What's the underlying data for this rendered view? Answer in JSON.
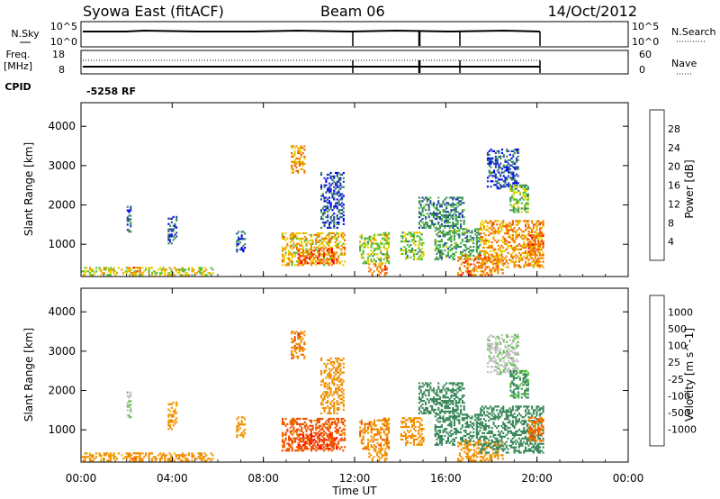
{
  "header": {
    "station": "Syowa East (fitACF)",
    "beam": "Beam 06",
    "date": "14/Oct/2012"
  },
  "nsky_panel": {
    "left_label": "N.Sky",
    "right_label": "N.Search",
    "left_ticks": [
      "10^5",
      "10^0"
    ],
    "right_ticks": [
      "10^5",
      "10^0"
    ]
  },
  "freq_panel": {
    "left_label_1": "Freq.",
    "left_label_2": "[MHz]",
    "left_ticks": [
      "18",
      "8"
    ],
    "right_label": "Nave",
    "right_ticks": [
      "60",
      "0"
    ]
  },
  "cpid_panel": {
    "label": "CPID",
    "value": "-5258 RF"
  },
  "chart_data": [
    {
      "type": "heatmap",
      "name": "power",
      "ylabel": "Slant Range [km]",
      "ylim": [
        180,
        4600
      ],
      "y_ticks": [
        "1000",
        "2000",
        "3000",
        "4000"
      ],
      "xlim_hours": [
        0,
        24
      ],
      "x_ticks": [
        "00:00",
        "04:00",
        "08:00",
        "12:00",
        "16:00",
        "20:00",
        "00:00"
      ],
      "colorbar": {
        "label": "Power [dB]",
        "ticks": [
          "4",
          "8",
          "12",
          "16",
          "20",
          "24",
          "28"
        ],
        "colors": [
          "#0000ff",
          "#2244aa",
          "#3d8a5a",
          "#50c03c",
          "#e8d000",
          "#f09000",
          "#f06000",
          "#ff0000"
        ]
      },
      "regions": [
        {
          "t": [
            0.0,
            5.8
          ],
          "r": [
            200,
            420
          ],
          "v": 18
        },
        {
          "t": [
            2.2,
            2.6
          ],
          "r": [
            250,
            400
          ],
          "v": 26
        },
        {
          "t": [
            2.0,
            2.2
          ],
          "r": [
            1300,
            2100
          ],
          "v": 6
        },
        {
          "t": [
            3.8,
            4.2
          ],
          "r": [
            1000,
            1700
          ],
          "v": 7
        },
        {
          "t": [
            6.8,
            7.2
          ],
          "r": [
            800,
            1300
          ],
          "v": 6
        },
        {
          "t": [
            8.8,
            11.6
          ],
          "r": [
            450,
            1300
          ],
          "v": 20
        },
        {
          "t": [
            9.5,
            11.2
          ],
          "r": [
            500,
            900
          ],
          "v": 26
        },
        {
          "t": [
            9.2,
            9.8
          ],
          "r": [
            2800,
            3500
          ],
          "v": 22
        },
        {
          "t": [
            10.5,
            11.5
          ],
          "r": [
            1400,
            2800
          ],
          "v": 6
        },
        {
          "t": [
            12.2,
            13.5
          ],
          "r": [
            500,
            1300
          ],
          "v": 16
        },
        {
          "t": [
            12.6,
            13.4
          ],
          "r": [
            200,
            500
          ],
          "v": 24
        },
        {
          "t": [
            14.0,
            15.0
          ],
          "r": [
            600,
            1300
          ],
          "v": 15
        },
        {
          "t": [
            14.8,
            16.8
          ],
          "r": [
            1400,
            2200
          ],
          "v": 10
        },
        {
          "t": [
            15.5,
            17.5
          ],
          "r": [
            600,
            1400
          ],
          "v": 12
        },
        {
          "t": [
            16.5,
            18.5
          ],
          "r": [
            200,
            700
          ],
          "v": 24
        },
        {
          "t": [
            17.5,
            20.3
          ],
          "r": [
            400,
            1600
          ],
          "v": 22
        },
        {
          "t": [
            17.8,
            19.2
          ],
          "r": [
            2400,
            3400
          ],
          "v": 6
        },
        {
          "t": [
            18.8,
            19.6
          ],
          "r": [
            1800,
            2500
          ],
          "v": 14
        },
        {
          "t": [
            19.6,
            20.3
          ],
          "r": [
            700,
            1300
          ],
          "v": 24
        }
      ]
    },
    {
      "type": "heatmap",
      "name": "velocity",
      "ylabel": "Slant Range [km]",
      "ylim": [
        180,
        4600
      ],
      "y_ticks": [
        "1000",
        "2000",
        "3000",
        "4000"
      ],
      "xlim_hours": [
        0,
        24
      ],
      "x_ticks": [
        "00:00",
        "04:00",
        "08:00",
        "12:00",
        "16:00",
        "20:00",
        "00:00"
      ],
      "xlabel": "Time UT",
      "colorbar": {
        "label": "Velocity [m s^-1]",
        "ticks": [
          "1000",
          "500",
          "100",
          "25",
          "-25",
          "-100",
          "-500",
          "-1000"
        ],
        "colors": [
          "#2040c0",
          "#2e7a55",
          "#3c8a5c",
          "#58c040",
          "#c0c0c0",
          "#f0c000",
          "#f09000",
          "#f05000",
          "#ff0000"
        ]
      },
      "regions": [
        {
          "t": [
            0.0,
            5.8
          ],
          "r": [
            200,
            420
          ],
          "v": -150
        },
        {
          "t": [
            2.2,
            2.6
          ],
          "r": [
            250,
            400
          ],
          "v": -400
        },
        {
          "t": [
            2.0,
            2.2
          ],
          "r": [
            1300,
            2100
          ],
          "v": 10
        },
        {
          "t": [
            3.8,
            4.2
          ],
          "r": [
            1000,
            1700
          ],
          "v": -150
        },
        {
          "t": [
            6.8,
            7.2
          ],
          "r": [
            800,
            1300
          ],
          "v": -200
        },
        {
          "t": [
            8.8,
            11.6
          ],
          "r": [
            450,
            1300
          ],
          "v": -700
        },
        {
          "t": [
            9.5,
            11.2
          ],
          "r": [
            500,
            900
          ],
          "v": -900
        },
        {
          "t": [
            9.2,
            9.8
          ],
          "r": [
            2800,
            3500
          ],
          "v": -400
        },
        {
          "t": [
            10.5,
            11.5
          ],
          "r": [
            1400,
            2800
          ],
          "v": -250
        },
        {
          "t": [
            12.2,
            13.5
          ],
          "r": [
            500,
            1300
          ],
          "v": -400
        },
        {
          "t": [
            12.6,
            13.4
          ],
          "r": [
            200,
            500
          ],
          "v": -300
        },
        {
          "t": [
            14.0,
            15.0
          ],
          "r": [
            600,
            1300
          ],
          "v": -200
        },
        {
          "t": [
            14.8,
            16.8
          ],
          "r": [
            1400,
            2200
          ],
          "v": 300
        },
        {
          "t": [
            15.5,
            17.5
          ],
          "r": [
            600,
            1400
          ],
          "v": 400
        },
        {
          "t": [
            16.5,
            18.5
          ],
          "r": [
            200,
            700
          ],
          "v": -200
        },
        {
          "t": [
            17.5,
            20.3
          ],
          "r": [
            400,
            1600
          ],
          "v": 250
        },
        {
          "t": [
            17.8,
            19.2
          ],
          "r": [
            2400,
            3400
          ],
          "v": 10
        },
        {
          "t": [
            18.8,
            19.6
          ],
          "r": [
            1800,
            2500
          ],
          "v": 120
        },
        {
          "t": [
            19.6,
            20.3
          ],
          "r": [
            700,
            1300
          ],
          "v": -500
        }
      ]
    }
  ]
}
